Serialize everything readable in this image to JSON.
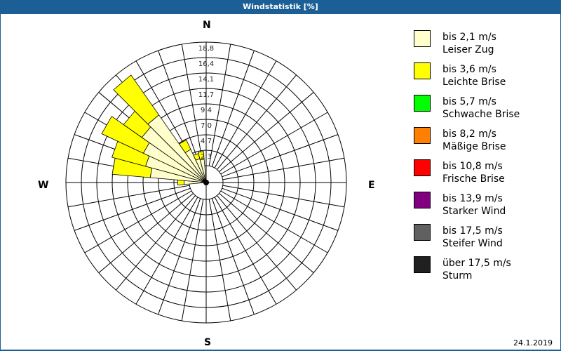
{
  "title": "Windstatistik [%]",
  "cardinals": {
    "n": "N",
    "e": "E",
    "s": "S",
    "w": "W"
  },
  "date": "24.1.2019",
  "legend": [
    {
      "range": "bis 2,1 m/s",
      "name": "Leiser Zug",
      "color": "#ffffcc"
    },
    {
      "range": "bis 3,6 m/s",
      "name": "Leichte Brise",
      "color": "#ffff00"
    },
    {
      "range": "bis 5,7 m/s",
      "name": "Schwache Brise",
      "color": "#00ff00"
    },
    {
      "range": "bis 8,2 m/s",
      "name": "Mäßige Brise",
      "color": "#ff8000"
    },
    {
      "range": "bis 10,8 m/s",
      "name": "Frische Brise",
      "color": "#ff0000"
    },
    {
      "range": "bis 13,9 m/s",
      "name": "Starker Wind",
      "color": "#800080"
    },
    {
      "range": "bis 17,5 m/s",
      "name": "Steifer Wind",
      "color": "#606060"
    },
    {
      "range": "über 17,5 m/s",
      "name": "Sturm",
      "color": "#202020"
    }
  ],
  "chart_data": {
    "type": "polar-bar (wind rose)",
    "title": "Windstatistik [%]",
    "radial_ticks": [
      "2,3",
      "4,7",
      "7,0",
      "9,4",
      "11,7",
      "14,1",
      "16,4",
      "18,8"
    ],
    "radial_max": 18.8,
    "sector_width_deg": 10,
    "series_names": [
      "bis 2,1 m/s",
      "bis 3,6 m/s"
    ],
    "sectors": [
      {
        "dir_deg": 270,
        "cumulative": [
          0.8,
          1.8
        ]
      },
      {
        "dir_deg": 280,
        "cumulative": [
          6.0,
          11.8
        ]
      },
      {
        "dir_deg": 290,
        "cumulative": [
          7.0,
          12.3
        ]
      },
      {
        "dir_deg": 300,
        "cumulative": [
          8.0,
          15.0
        ]
      },
      {
        "dir_deg": 310,
        "cumulative": [
          9.4,
          12.8
        ]
      },
      {
        "dir_deg": 320,
        "cumulative": [
          10.0,
          17.4
        ]
      },
      {
        "dir_deg": 330,
        "cumulative": [
          3.0,
          4.6
        ]
      },
      {
        "dir_deg": 340,
        "cumulative": [
          1.2,
          2.0
        ]
      },
      {
        "dir_deg": 350,
        "cumulative": [
          1.0,
          2.2
        ]
      }
    ],
    "legend_position": "right"
  }
}
